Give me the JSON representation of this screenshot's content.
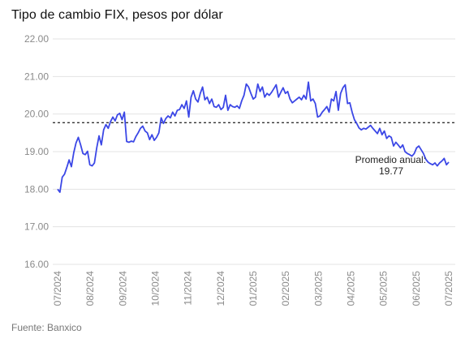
{
  "title": "Tipo de cambio FIX, pesos por dólar",
  "source": "Fuente: Banxico",
  "colors": {
    "line": "#3b47e6",
    "grid": "#e3e3e3",
    "axis_text": "#8a8a8a",
    "average": "#333333"
  },
  "chart_data": {
    "type": "line",
    "title": "Tipo de cambio FIX, pesos por dólar",
    "ylim": [
      16.0,
      22.0
    ],
    "yticks": [
      "16.00",
      "17.00",
      "18.00",
      "19.00",
      "20.00",
      "21.00",
      "22.00"
    ],
    "xticks": [
      "07/2024",
      "08/2024",
      "09/2024",
      "10/2024",
      "11/2024",
      "12/2024",
      "01/2025",
      "02/2025",
      "03/2025",
      "04/2025",
      "05/2025",
      "06/2025",
      "07/2025"
    ],
    "grid": true,
    "average": {
      "value": 19.77,
      "label": "Promedio anual:",
      "value_label": "19.77"
    },
    "series": [
      {
        "values": [
          18.0,
          17.92,
          18.32,
          18.4,
          18.58,
          18.78,
          18.6,
          18.97,
          19.23,
          19.38,
          19.18,
          18.95,
          18.92,
          19.01,
          18.65,
          18.62,
          18.7,
          19.1,
          19.42,
          19.18,
          19.58,
          19.72,
          19.62,
          19.8,
          19.92,
          19.82,
          19.98,
          20.02,
          19.85,
          20.05,
          19.27,
          19.25,
          19.28,
          19.26,
          19.4,
          19.5,
          19.62,
          19.68,
          19.55,
          19.5,
          19.32,
          19.45,
          19.3,
          19.38,
          19.5,
          19.9,
          19.75,
          19.88,
          19.95,
          19.9,
          20.05,
          19.95,
          20.1,
          20.12,
          20.25,
          20.15,
          20.35,
          19.92,
          20.45,
          20.62,
          20.4,
          20.32,
          20.55,
          20.72,
          20.38,
          20.45,
          20.28,
          20.4,
          20.2,
          20.18,
          20.25,
          20.12,
          20.18,
          20.5,
          20.1,
          20.25,
          20.2,
          20.18,
          20.22,
          20.15,
          20.35,
          20.5,
          20.8,
          20.72,
          20.55,
          20.4,
          20.45,
          20.8,
          20.6,
          20.72,
          20.45,
          20.55,
          20.5,
          20.58,
          20.68,
          20.78,
          20.45,
          20.58,
          20.7,
          20.55,
          20.6,
          20.4,
          20.3,
          20.35,
          20.4,
          20.45,
          20.38,
          20.5,
          20.4,
          20.85,
          20.35,
          20.4,
          20.28,
          19.92,
          19.95,
          20.05,
          20.12,
          20.2,
          20.05,
          20.4,
          20.35,
          20.6,
          20.1,
          20.55,
          20.7,
          20.78,
          20.28,
          20.3,
          20.05,
          19.85,
          19.75,
          19.63,
          19.58,
          19.62,
          19.6,
          19.65,
          19.7,
          19.62,
          19.55,
          19.48,
          19.62,
          19.45,
          19.55,
          19.35,
          19.42,
          19.38,
          19.15,
          19.25,
          19.18,
          19.1,
          19.18,
          19.0,
          18.95,
          18.92,
          18.88,
          18.95,
          19.1,
          19.15,
          19.05,
          18.95,
          18.8,
          18.72,
          18.68,
          18.65,
          18.7,
          18.62,
          18.7,
          18.75,
          18.82,
          18.65,
          18.72
        ]
      }
    ]
  }
}
